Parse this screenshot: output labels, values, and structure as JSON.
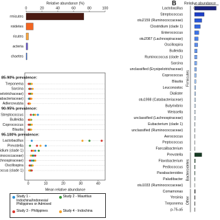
{
  "chart_data": [
    {
      "type": "bar",
      "orientation": "horizontal",
      "xlabel": "Relative abundance (%)",
      "categories": [
        "rmicutes",
        "roidetes",
        "ricutes",
        "acteria",
        "chaetes"
      ],
      "values": [
        73,
        9,
        3,
        2,
        1
      ],
      "colors": [
        "#4a1a12",
        "#f26522",
        "#f7a541",
        "#6a5acd",
        "#3f6fd6"
      ],
      "xlim": [
        0,
        100
      ],
      "xticks": [
        0,
        20,
        40,
        60,
        80,
        100
      ]
    },
    {
      "type": "dot",
      "xlabel": "Mean relative abundance",
      "xlim": [
        -2,
        44
      ],
      "xticks": [
        0,
        10,
        20,
        30,
        40
      ],
      "grid": true,
      "series": [
        {
          "name": "Study 1 - Indochina/Indonesia/ Philippines or Admixed",
          "color": "#2b8fd6"
        },
        {
          "name": "Study 2 - Mauritius",
          "color": "#3a9a3a"
        },
        {
          "name": "Study 3 - Philippines",
          "color": "#d9342b"
        },
        {
          "name": "Study 4 - Indochina",
          "color": "#f4a12a"
        }
      ],
      "groups": [
        {
          "label": "85-90% prevalence:",
          "categories": [
            "Treponema",
            "Sarcina",
            "lassified (Erysipelotrichaceae)",
            "tu1998 (Catabacteriaceae)",
            "Adlercreutzia"
          ],
          "series": [
            {
              "values": [
                0.5,
                1.5,
                0.8,
                0.4,
                0.3
              ]
            },
            {
              "values": [
                1.2,
                0.6,
                1.5,
                0.8,
                0.5
              ]
            },
            {
              "values": [
                0.3,
                0.9,
                0.5,
                1.2,
                0.2
              ]
            },
            {
              "values": [
                2,
                2.5,
                2.2,
                1.8,
                1
              ]
            }
          ]
        },
        {
          "label": "90-95% prevalence:",
          "categories": [
            "Streptococcus",
            "Bulleidia",
            "Coprococcus",
            "Blautia"
          ],
          "series": [
            {
              "values": [
                5.5,
                0.8,
                0.6,
                0.5
              ]
            },
            {
              "values": [
                3,
                1.6,
                1.2,
                1
              ]
            },
            {
              "values": [
                1.5,
                0.4,
                0.3,
                0.3
              ]
            },
            {
              "values": [
                4,
                1.2,
                2,
                1.6
              ]
            }
          ]
        },
        {
          "label": "95-100% prevalence:",
          "categories": [
            "Lactobacillus",
            "Prevotella",
            "Clostridium (clade 1)",
            "u2159 (Ruminococcaceae)",
            "tu2087 (Lachnospiraceae)",
            "Oscillospira",
            "Ruminococcus (clade 1)"
          ],
          "series": [
            {
              "values": [
                2,
                10,
                4,
                3,
                2,
                1.5,
                1
              ]
            },
            {
              "values": [
                35,
                1,
                6,
                2.5,
                3,
                2,
                1.5
              ]
            },
            {
              "values": [
                42,
                5,
                2,
                4,
                1,
                0.8,
                2
              ]
            },
            {
              "values": [
                31,
                7,
                3,
                1.5,
                4,
                2.5,
                0.6
              ]
            }
          ]
        }
      ]
    },
    {
      "type": "bar",
      "orientation": "horizontal",
      "panel": "B",
      "xlabel": "Relative abundance",
      "xlim": [
        0,
        10
      ],
      "xticks": [
        0
      ],
      "groups": [
        {
          "label": "Firmicutes",
          "categories": [
            "Lactobacillus",
            "Streptococcus",
            "otu2159 (Ruminococcaceae)",
            "Clostridium (clade 1)",
            "Enterococcus",
            "otu2087 (Lachnospiraceae)",
            "Oscillospira",
            "Bulleidia",
            "Ruminococcus (clade 1)",
            "Sarcina",
            "unclassified (Erysipelotrichaceae)",
            "Coprococcus",
            "Blautia",
            "Leuconostoc",
            "Dialister",
            "otu1998 (Catabacteriaceae)",
            "Butyrivibrio",
            "Weissella",
            "unclassified (Lachnospiraceae)",
            "Eubacterium (clade 1)",
            "unclassified (Ruminococcaceae)",
            "Aerococcus",
            "Peptococcus",
            "Faecalibacterium"
          ],
          "values": [
            9,
            4,
            3,
            2.4,
            1.8,
            1.5,
            1.3,
            1.1,
            1,
            0.9,
            0.8,
            0.7,
            0.6,
            0.5,
            0.45,
            0.4,
            0.35,
            0.3,
            0.3,
            0.25,
            0.2,
            0.2,
            0.15,
            0.15
          ],
          "colors": [
            "#1a237e",
            "#1e40c8",
            "#2a57d8",
            "#3366e0",
            "#3d73e6",
            "#4a80ea",
            "#5a8cee",
            "#6698f0",
            "#72a2f2",
            "#7eacf4",
            "#8ab5f5",
            "#96bff7",
            "#a2c8f8",
            "#aed1fa",
            "#b8d8fb",
            "#c2defb",
            "#cae3fc",
            "#d2e8fc",
            "#d8ecfd",
            "#deeffd",
            "#e3f2fe",
            "#e8f4fe",
            "#ecf6fe",
            "#f0f8ff"
          ]
        },
        {
          "label": "Bacteroidetes",
          "categories": [
            "Prevotella",
            "Flavobacterium",
            "Pediococcus",
            "Parabacteroides",
            "Paludibacter",
            "otu1033 (Ruminococcaceae)"
          ],
          "values": [
            3,
            0.3,
            0.25,
            0.2,
            0.15,
            0.1
          ],
          "colors": [
            "#173b24",
            "#2e5a3b",
            "#44745a",
            "#5d8c72",
            "#78a38c",
            "#94b9a5"
          ]
        },
        {
          "label": "Other",
          "categories": [
            "Comamonas",
            "Yersinia",
            "Treponema",
            "p-75-a5"
          ],
          "values": [
            0.3,
            0.25,
            0.2,
            0.15
          ],
          "colors": [
            "#3a3a3a",
            "#555555",
            "#707070",
            "#8a8a8a"
          ]
        }
      ]
    }
  ]
}
